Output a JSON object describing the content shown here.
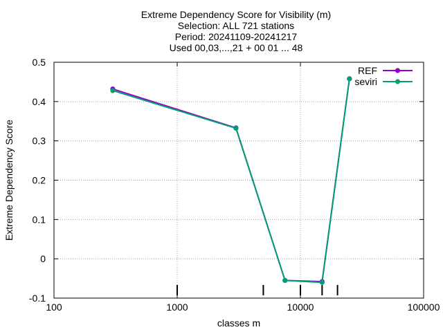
{
  "chart_data": {
    "type": "line",
    "title_lines": [
      "Extreme Dependency Score  for Visibility (m)",
      "Selection: ALL    721 stations",
      "Period: 20241109-20241217",
      "Used 00,03,...,21 + 00 01 ... 48"
    ],
    "xlabel": "classes m",
    "ylabel": "Extreme Dependency Score",
    "x_scale": "log",
    "xlim": [
      100,
      100000
    ],
    "ylim": [
      -0.1,
      0.5
    ],
    "x_ticks": [
      100,
      1000,
      10000,
      100000
    ],
    "x_tick_labels": [
      "100",
      "1000",
      "10000",
      "100000"
    ],
    "y_ticks": [
      -0.1,
      0,
      0.1,
      0.2,
      0.3,
      0.4,
      0.5
    ],
    "y_tick_labels": [
      "-0.1",
      "0",
      "0.1",
      "0.2",
      "0.3",
      "0.4",
      "0.5"
    ],
    "grid": true,
    "legend_position": "top-right",
    "class_markers_x": [
      1000,
      5000,
      10000,
      15000,
      20000
    ],
    "series": [
      {
        "name": "REF",
        "color": "#9400d3",
        "x": [
          300,
          3000,
          7500,
          15000,
          25000
        ],
        "y": [
          0.432,
          0.333,
          -0.055,
          -0.058,
          0.458
        ]
      },
      {
        "name": "seviri",
        "color": "#009e73",
        "x": [
          300,
          3000,
          7500,
          15000,
          25000
        ],
        "y": [
          0.428,
          0.332,
          -0.055,
          -0.06,
          0.458
        ]
      }
    ]
  }
}
